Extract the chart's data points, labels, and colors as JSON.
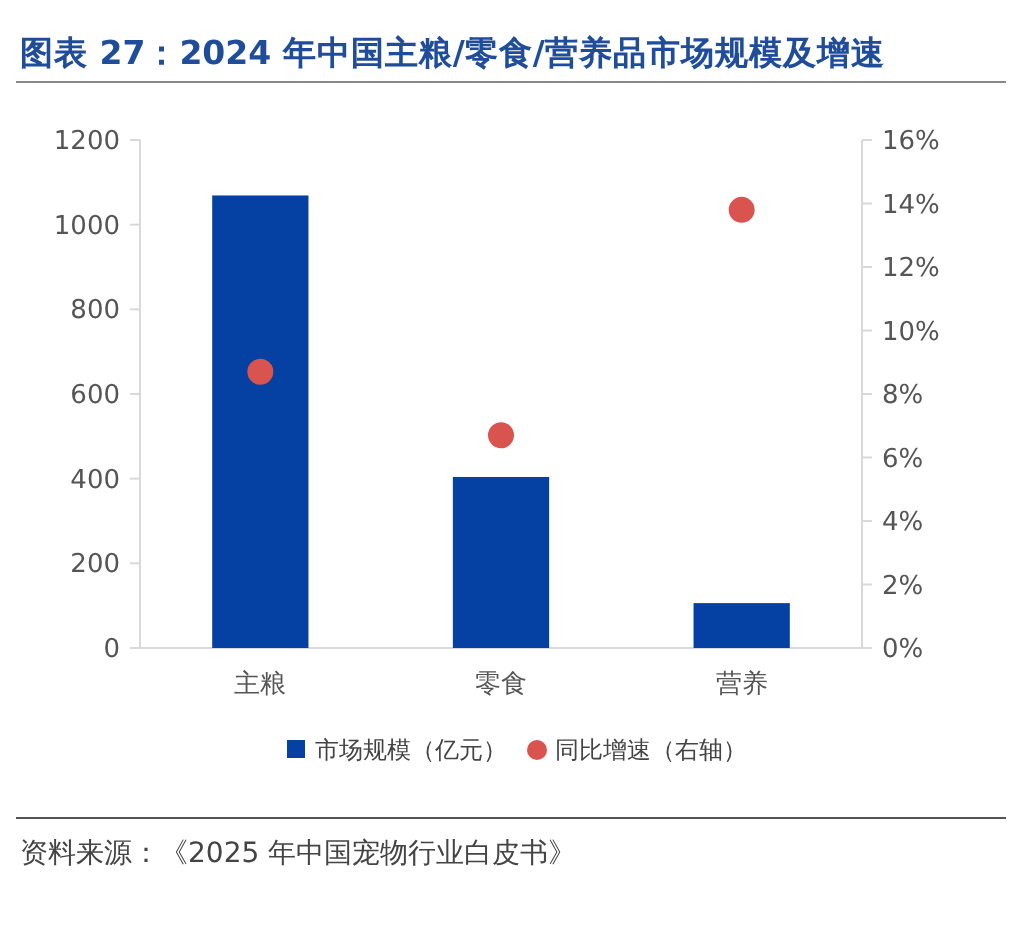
{
  "chart_data": {
    "type": "bar",
    "title": "图表 27：2024 年中国主粮/零食/营养品市场规模及增速",
    "categories": [
      "主粮",
      "零食",
      "营养"
    ],
    "series": [
      {
        "name": "市场规模（亿元）",
        "color": "#0540a3",
        "values": [
          1069,
          404,
          106
        ]
      },
      {
        "name": "同比增速（右轴）",
        "type": "scatter",
        "axis": "y2",
        "color": "#d9534f",
        "values": [
          8.7,
          6.7,
          13.8
        ]
      }
    ],
    "ylim": [
      0,
      1200
    ],
    "yticks": [
      0,
      200,
      400,
      600,
      800,
      1000,
      1200
    ],
    "y2lim": [
      0,
      16
    ],
    "y2ticks": [
      {
        "value": 0,
        "label": "0%"
      },
      {
        "value": 2,
        "label": "2%"
      },
      {
        "value": 4,
        "label": "4%"
      },
      {
        "value": 6,
        "label": "6%"
      },
      {
        "value": 8,
        "label": "8%"
      },
      {
        "value": 10,
        "label": "10%"
      },
      {
        "value": 12,
        "label": "12%"
      },
      {
        "value": 14,
        "label": "14%"
      },
      {
        "value": 16,
        "label": "16%"
      }
    ],
    "legend": "bottom",
    "marker": "circle",
    "annotations": [
      "资料来源：《2025 年中国宠物行业白皮书》"
    ]
  }
}
